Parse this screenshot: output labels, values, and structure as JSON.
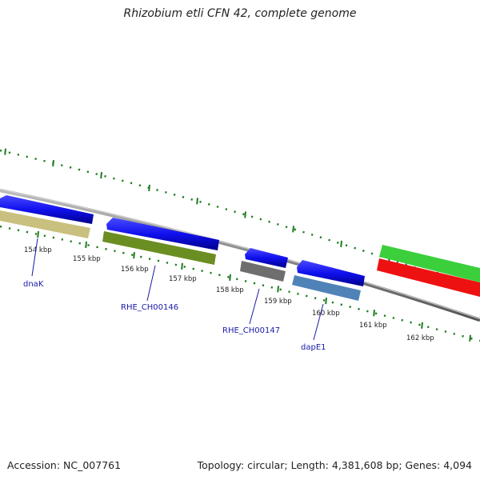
{
  "title": "Rhizobium etli CFN 42, complete genome",
  "footer": {
    "accession": "Accession: NC_007761",
    "summary": "Topology: circular; Length: 4,381,608 bp; Genes: 4,094"
  },
  "colors": {
    "backbone": "#8a8a8a",
    "tick": "#1e7d1e",
    "strand_forward": "#1010ee",
    "label": "#1a1aa8"
  },
  "ticks": [
    "154 kbp",
    "155 kbp",
    "156 kbp",
    "157 kbp",
    "158 kbp",
    "159 kbp",
    "160 kbp",
    "161 kbp",
    "162 kbp"
  ],
  "genes": [
    {
      "name": "dnaK",
      "color": "#c9c07f"
    },
    {
      "name": "RHE_CH00146",
      "color": "#6b8e23"
    },
    {
      "name": "RHE_CH00147",
      "color": "#6e6e6e"
    },
    {
      "name": "dapE1",
      "color": "#4f83b8"
    },
    {
      "name": "",
      "color": "#3ccf3c"
    },
    {
      "name": "",
      "color": "#ee1111"
    }
  ]
}
